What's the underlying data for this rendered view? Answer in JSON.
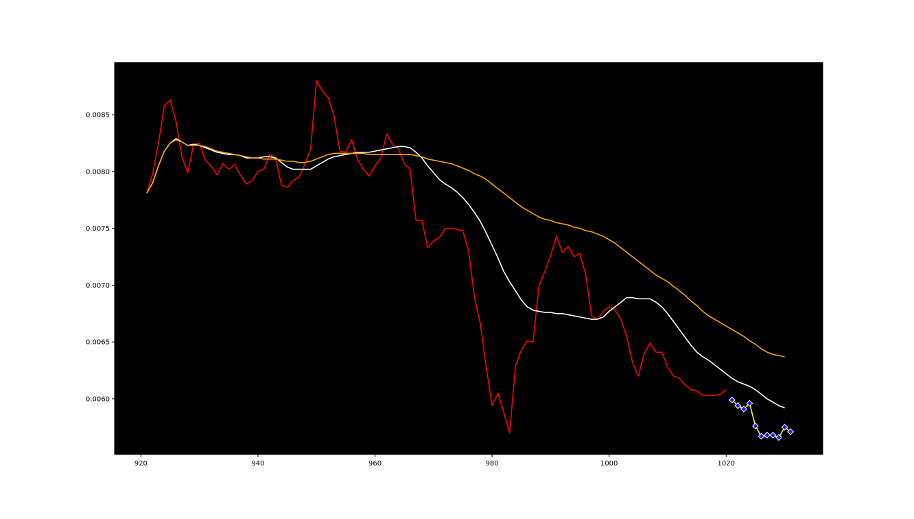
{
  "chart_data": {
    "type": "line",
    "title": "",
    "xlabel": "",
    "ylabel": "",
    "xlim": [
      915.5,
      1036.5
    ],
    "ylim": [
      0.00551,
      0.00896
    ],
    "grid": false,
    "background": "#000000",
    "x_ticks": [
      920,
      940,
      960,
      980,
      1000,
      1020
    ],
    "x_tick_labels": [
      "920",
      "940",
      "960",
      "980",
      "1000",
      "1020"
    ],
    "y_ticks": [
      0.006,
      0.0065,
      0.007,
      0.0075,
      0.008,
      0.0085
    ],
    "y_tick_labels": [
      "0.0060",
      "0.0065",
      "0.0070",
      "0.0075",
      "0.0080",
      "0.0085"
    ],
    "series": [
      {
        "color": "#ff0000",
        "x_start": 921,
        "values": [
          0.00781,
          0.00798,
          0.00825,
          0.00858,
          0.00863,
          0.00844,
          0.00813,
          0.00799,
          0.00824,
          0.00825,
          0.0081,
          0.00805,
          0.00797,
          0.00807,
          0.00802,
          0.00806,
          0.00797,
          0.00789,
          0.00792,
          0.008,
          0.00802,
          0.00815,
          0.00812,
          0.00788,
          0.00786,
          0.00792,
          0.00795,
          0.00806,
          0.0082,
          0.0088,
          0.00871,
          0.00865,
          0.00849,
          0.00818,
          0.00817,
          0.00828,
          0.00811,
          0.00802,
          0.00796,
          0.00805,
          0.00812,
          0.00833,
          0.00824,
          0.0082,
          0.00807,
          0.00802,
          0.00757,
          0.00757,
          0.00733,
          0.00739,
          0.00742,
          0.0075,
          0.0075,
          0.00749,
          0.00748,
          0.0073,
          0.00689,
          0.00666,
          0.00628,
          0.00594,
          0.00605,
          0.00588,
          0.0057,
          0.00629,
          0.00643,
          0.00651,
          0.0065,
          0.00699,
          0.00712,
          0.00726,
          0.00743,
          0.00729,
          0.00734,
          0.00725,
          0.00728,
          0.00709,
          0.00673,
          0.0067,
          0.00677,
          0.00681,
          0.00678,
          0.0067,
          0.00655,
          0.00632,
          0.0062,
          0.0064,
          0.00649,
          0.00641,
          0.00641,
          0.00628,
          0.0062,
          0.00618,
          0.00612,
          0.00608,
          0.00607,
          0.00603,
          0.00603,
          0.00603,
          0.00604,
          0.00608
        ]
      },
      {
        "color": "#ffffff",
        "x_start": 921,
        "values": [
          0.00781,
          0.0079,
          0.00805,
          0.00818,
          0.00825,
          0.00829,
          0.00826,
          0.00823,
          0.00824,
          0.00823,
          0.00821,
          0.00819,
          0.00817,
          0.00816,
          0.00815,
          0.00815,
          0.00814,
          0.00812,
          0.00812,
          0.00812,
          0.00813,
          0.00813,
          0.00812,
          0.00808,
          0.00804,
          0.00802,
          0.00802,
          0.00802,
          0.00802,
          0.00805,
          0.00808,
          0.00811,
          0.00813,
          0.00814,
          0.00815,
          0.00816,
          0.00817,
          0.00817,
          0.00817,
          0.00818,
          0.00819,
          0.0082,
          0.00821,
          0.00822,
          0.00822,
          0.00821,
          0.00817,
          0.00812,
          0.00805,
          0.00799,
          0.00793,
          0.00789,
          0.00786,
          0.00782,
          0.00777,
          0.00771,
          0.00764,
          0.00756,
          0.00746,
          0.00735,
          0.00724,
          0.00712,
          0.00703,
          0.00695,
          0.00687,
          0.00681,
          0.00678,
          0.00677,
          0.00676,
          0.00676,
          0.00675,
          0.00675,
          0.00674,
          0.00673,
          0.00672,
          0.00671,
          0.0067,
          0.0067,
          0.00672,
          0.00677,
          0.00681,
          0.00685,
          0.00689,
          0.00689,
          0.00688,
          0.00688,
          0.00688,
          0.00685,
          0.00681,
          0.00675,
          0.00668,
          0.00661,
          0.00654,
          0.00647,
          0.00641,
          0.00637,
          0.00634,
          0.0063,
          0.00626,
          0.00622,
          0.00618,
          0.00615,
          0.00613,
          0.00611,
          0.00608,
          0.00604,
          0.006,
          0.00597,
          0.00594,
          0.00592
        ]
      },
      {
        "color": "#ffa500",
        "x_start": 921,
        "values": [
          0.00781,
          0.0079,
          0.00805,
          0.00818,
          0.00825,
          0.00828,
          0.00826,
          0.00823,
          0.00823,
          0.00823,
          0.00822,
          0.0082,
          0.00818,
          0.00817,
          0.00816,
          0.00815,
          0.00814,
          0.00813,
          0.00812,
          0.00812,
          0.00811,
          0.00811,
          0.00811,
          0.0081,
          0.00809,
          0.00809,
          0.00808,
          0.00808,
          0.00809,
          0.00811,
          0.00813,
          0.00815,
          0.00816,
          0.00816,
          0.00816,
          0.00816,
          0.00816,
          0.00816,
          0.00815,
          0.00815,
          0.00815,
          0.00815,
          0.00815,
          0.00815,
          0.00815,
          0.00815,
          0.00814,
          0.00813,
          0.00811,
          0.0081,
          0.00809,
          0.00808,
          0.00807,
          0.00805,
          0.00803,
          0.00801,
          0.00798,
          0.00796,
          0.00793,
          0.00789,
          0.00785,
          0.00781,
          0.00777,
          0.00773,
          0.00769,
          0.00766,
          0.00763,
          0.0076,
          0.00758,
          0.00757,
          0.00755,
          0.00754,
          0.00753,
          0.00751,
          0.0075,
          0.00748,
          0.00747,
          0.00745,
          0.00743,
          0.0074,
          0.00737,
          0.00733,
          0.00729,
          0.00725,
          0.00721,
          0.00717,
          0.00713,
          0.00709,
          0.00706,
          0.00703,
          0.00699,
          0.00695,
          0.00691,
          0.00686,
          0.00682,
          0.00677,
          0.00673,
          0.0067,
          0.00667,
          0.00664,
          0.00661,
          0.00658,
          0.00655,
          0.00651,
          0.00648,
          0.00644,
          0.00641,
          0.00639,
          0.00638,
          0.00637
        ]
      },
      {
        "color": "#ffff00",
        "marker": "diamond",
        "marker_face": "#1e1ef0",
        "marker_edge": "#ffffff",
        "x_start": 1021,
        "values": [
          0.00599,
          0.00594,
          0.00591,
          0.00596,
          0.00576,
          0.00567,
          0.00568,
          0.00568,
          0.00566,
          0.00575,
          0.00571
        ]
      }
    ]
  }
}
